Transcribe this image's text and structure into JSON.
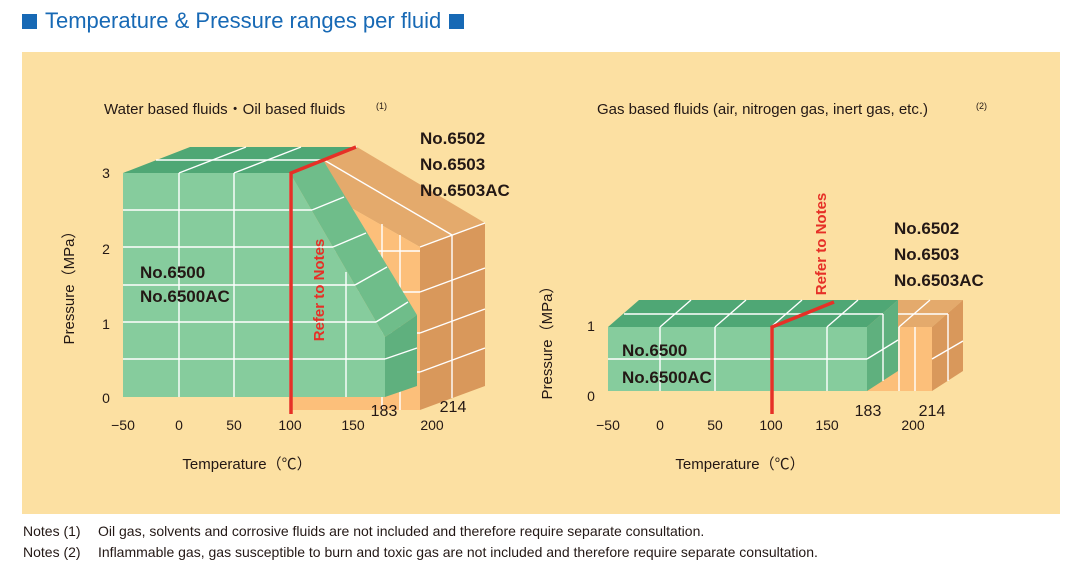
{
  "header": {
    "title": "Temperature & Pressure ranges per fluid",
    "accent_color": "#1769b5"
  },
  "left_chart": {
    "title": "Water based fluids・Oil based fluids",
    "title_note": "(1)",
    "ylabel": "Pressure（MPa）",
    "xlabel": "Temperature（℃）",
    "y_ticks": [
      "3",
      "2",
      "1",
      "0"
    ],
    "x_ticks": [
      "−50",
      "0",
      "50",
      "100",
      "150",
      "200"
    ],
    "marker_183": "183",
    "marker_214": "214",
    "green_model_1": "No.6500",
    "green_model_2": "No.6500AC",
    "orange_model_1": "No.6502",
    "orange_model_2": "No.6503",
    "orange_model_3": "No.6503AC",
    "refer_label": "Refer to Notes"
  },
  "right_chart": {
    "title": "Gas based fluids (air, nitrogen gas, inert gas, etc.)",
    "title_note": "(2)",
    "ylabel": "Pressure（MPa）",
    "xlabel": "Temperature（℃）",
    "y_ticks": [
      "1",
      "0"
    ],
    "x_ticks": [
      "−50",
      "0",
      "50",
      "100",
      "150",
      "200"
    ],
    "marker_183": "183",
    "marker_214": "214",
    "green_model_1": "No.6500",
    "green_model_2": "No.6500AC",
    "orange_model_1": "No.6502",
    "orange_model_2": "No.6503",
    "orange_model_3": "No.6503AC",
    "refer_label": "Refer to Notes"
  },
  "notes": [
    {
      "label": "Notes (1)",
      "text": "Oil gas, solvents and corrosive fluids are not included and therefore require separate consultation."
    },
    {
      "label": "Notes (2)",
      "text": "Inflammable gas, gas susceptible to burn and toxic gas are not included and therefore require separate consultation."
    }
  ],
  "colors": {
    "panel": "#fce0a2",
    "green_front": "#86cc9d",
    "green_top": "#4fa775",
    "green_side": "#5fb07e",
    "orange_front": "#fcbf7a",
    "orange_top": "#e4aa6c",
    "orange_side": "#d9985b",
    "red": "#e63027"
  }
}
